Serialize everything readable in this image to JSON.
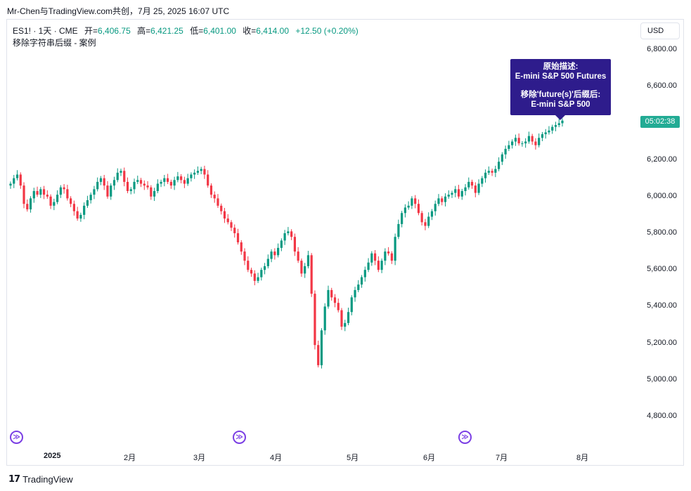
{
  "header": {
    "watermark": "Mr-Chen与TradingView.com共创，7月 25, 2025 16:07 UTC"
  },
  "legend": {
    "symbol": "ES1! · 1天 · CME",
    "open_label": "开=",
    "open": "6,406.75",
    "high_label": "高=",
    "high": "6,421.25",
    "low_label": "低=",
    "low": "6,401.00",
    "close_label": "收=",
    "close": "6,414.00",
    "change": "+12.50 (+0.20%)",
    "study": "移除字符串后缀 - 案例"
  },
  "currency_button": "USD",
  "last_price_countdown": "05:02:38",
  "note": {
    "line1": "原始描述:",
    "line2": "E-mini S&P 500 Futures",
    "line3": "移除'future(s)'后缀后:",
    "line4": "E-mini S&P 500"
  },
  "brand": {
    "name": "TradingView"
  },
  "colors": {
    "up": "#089981",
    "down": "#f23645",
    "note_bg": "#2e1c8c",
    "event": "#7b3fe4",
    "price_tag": "#22ab94"
  },
  "chart_data": {
    "type": "candlestick",
    "title": "ES1! · 1天 · CME",
    "ylim": [
      4700,
      6900
    ],
    "y_ticks": [
      "6,800.00",
      "6,600.00",
      "6,400.00",
      "6,200.00",
      "6,000.00",
      "5,800.00",
      "5,600.00",
      "5,400.00",
      "5,200.00",
      "5,000.00",
      "4,800.00"
    ],
    "x_ticks": [
      "2025",
      "2月",
      "3月",
      "4月",
      "5月",
      "6月",
      "7月",
      "8月"
    ],
    "series": [
      {
        "name": "ES1!",
        "close": [
          6070,
          6100,
          6120,
          6060,
          5960,
          5930,
          5990,
          6030,
          6010,
          6040,
          6010,
          6000,
          5950,
          5970,
          6010,
          6050,
          6040,
          5990,
          5960,
          5920,
          5880,
          5900,
          5950,
          5980,
          6010,
          6040,
          6080,
          6100,
          6060,
          6000,
          6060,
          6090,
          6130,
          6140,
          6080,
          6030,
          6040,
          6080,
          6090,
          6070,
          6060,
          6050,
          6000,
          6030,
          6070,
          6080,
          6100,
          6080,
          6060,
          6090,
          6110,
          6090,
          6070,
          6100,
          6120,
          6130,
          6140,
          6150,
          6120,
          6060,
          6010,
          5990,
          5950,
          5920,
          5880,
          5860,
          5830,
          5800,
          5750,
          5700,
          5650,
          5600,
          5580,
          5540,
          5560,
          5600,
          5620,
          5660,
          5700,
          5680,
          5720,
          5760,
          5800,
          5810,
          5780,
          5700,
          5650,
          5580,
          5620,
          5680,
          5470,
          5190,
          5080,
          5270,
          5400,
          5490,
          5450,
          5420,
          5380,
          5290,
          5310,
          5370,
          5450,
          5490,
          5520,
          5560,
          5600,
          5640,
          5690,
          5650,
          5600,
          5650,
          5700,
          5690,
          5650,
          5780,
          5850,
          5910,
          5940,
          5950,
          5990,
          5960,
          5910,
          5860,
          5840,
          5890,
          5920,
          5960,
          5990,
          5970,
          6000,
          6010,
          6020,
          6040,
          6000,
          6030,
          6050,
          6080,
          6060,
          6020,
          6070,
          6100,
          6130,
          6140,
          6130,
          6150,
          6190,
          6230,
          6260,
          6280,
          6300,
          6320,
          6290,
          6290,
          6300,
          6330,
          6300,
          6280,
          6320,
          6340,
          6350,
          6360,
          6380,
          6390,
          6400,
          6414
        ]
      }
    ]
  }
}
